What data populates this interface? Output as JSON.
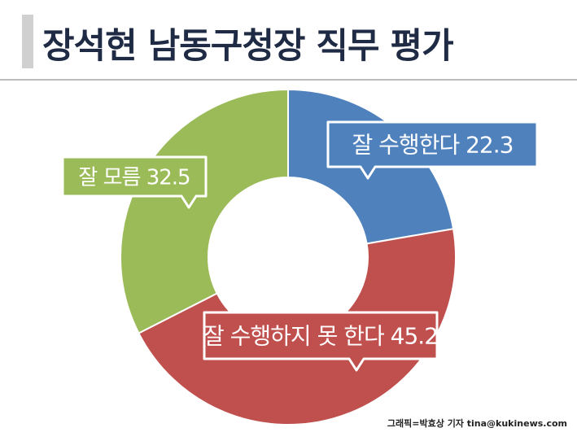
{
  "title": "장석현 남동구청장 직무 평가",
  "credit": "그래픽=박효상 기자 tina@kukinews.com",
  "chart_data": {
    "type": "pie",
    "donut": true,
    "slices": [
      {
        "label": "잘 수행한다",
        "value": 22.3,
        "color": "#4f81bd"
      },
      {
        "label": "잘 수행하지 못 한다",
        "value": 45.2,
        "color": "#c0504d"
      },
      {
        "label": "잘 모름",
        "value": 32.5,
        "color": "#9bbb59"
      }
    ],
    "start_angle_deg": 0,
    "direction": "clockwise"
  }
}
